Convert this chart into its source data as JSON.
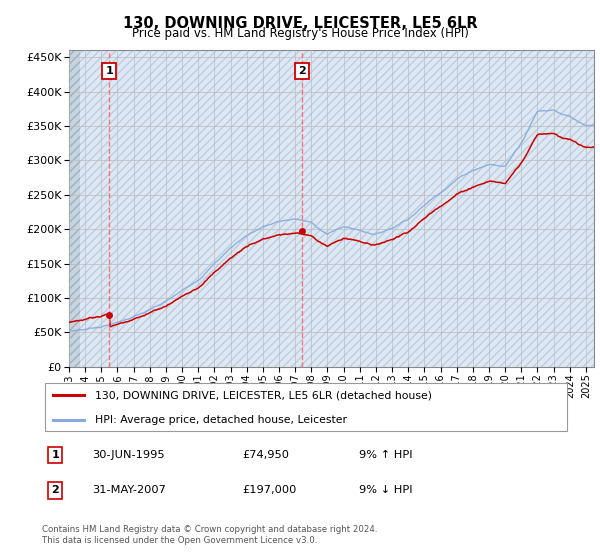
{
  "title": "130, DOWNING DRIVE, LEICESTER, LE5 6LR",
  "subtitle": "Price paid vs. HM Land Registry's House Price Index (HPI)",
  "ylim": [
    0,
    460000
  ],
  "yticks": [
    0,
    50000,
    100000,
    150000,
    200000,
    250000,
    300000,
    350000,
    400000,
    450000
  ],
  "ytick_labels": [
    "£0",
    "£50K",
    "£100K",
    "£150K",
    "£200K",
    "£250K",
    "£300K",
    "£350K",
    "£400K",
    "£450K"
  ],
  "xlim_start": 1993.0,
  "xlim_end": 2025.5,
  "xtick_years": [
    1993,
    1994,
    1995,
    1996,
    1997,
    1998,
    1999,
    2000,
    2001,
    2002,
    2003,
    2004,
    2005,
    2006,
    2007,
    2008,
    2009,
    2010,
    2011,
    2012,
    2013,
    2014,
    2015,
    2016,
    2017,
    2018,
    2019,
    2020,
    2021,
    2022,
    2023,
    2024,
    2025
  ],
  "purchase1_date": 1995.5,
  "purchase1_price": 74950,
  "purchase2_date": 2007.42,
  "purchase2_price": 197000,
  "line_color_property": "#cc0000",
  "line_color_hpi": "#88aadd",
  "marker_color": "#cc0000",
  "dashed_color": "#ff6666",
  "annotation_box_color": "#cc0000",
  "grid_color": "#bbbbbb",
  "plot_bg": "#dce8f5",
  "legend_label_property": "130, DOWNING DRIVE, LEICESTER, LE5 6LR (detached house)",
  "legend_label_hpi": "HPI: Average price, detached house, Leicester",
  "footer_text": "Contains HM Land Registry data © Crown copyright and database right 2024.\nThis data is licensed under the Open Government Licence v3.0.",
  "table_rows": [
    {
      "num": "1",
      "date": "30-JUN-1995",
      "price": "£74,950",
      "hpi": "9% ↑ HPI"
    },
    {
      "num": "2",
      "date": "31-MAY-2007",
      "price": "£197,000",
      "hpi": "9% ↓ HPI"
    }
  ],
  "hpi_years": [
    1993,
    1994,
    1995,
    1996,
    1997,
    1998,
    1999,
    2000,
    2001,
    2002,
    2003,
    2004,
    2005,
    2006,
    2007,
    2008,
    2009,
    2010,
    2011,
    2012,
    2013,
    2014,
    2015,
    2016,
    2017,
    2018,
    2019,
    2020,
    2021,
    2022,
    2023,
    2024,
    2025
  ],
  "hpi_values": [
    52000,
    55000,
    60000,
    66000,
    75000,
    84000,
    95000,
    110000,
    128000,
    152000,
    175000,
    194000,
    207000,
    214000,
    218000,
    212000,
    196000,
    207000,
    202000,
    197000,
    207000,
    222000,
    242000,
    262000,
    282000,
    296000,
    305000,
    302000,
    338000,
    385000,
    388000,
    378000,
    362000
  ]
}
